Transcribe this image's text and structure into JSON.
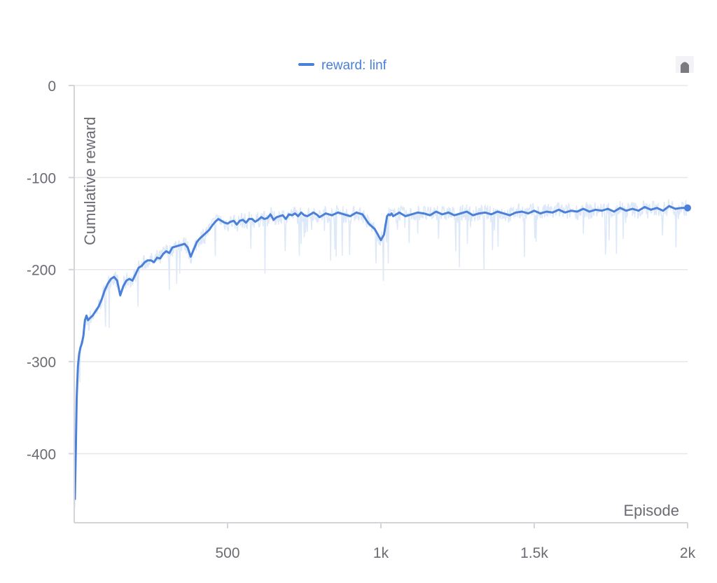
{
  "colors": {
    "series": "#4a80d8",
    "series_raw": "#dde8f8",
    "grid": "#e8e8ec",
    "axis": "#d4d4da",
    "text": "#6b6b73"
  },
  "legend": {
    "icon": "legend-line-icon",
    "label": "reward: linf",
    "placement": "top-center"
  },
  "toolbar": {
    "icon": "menu-handle-icon"
  },
  "chart_data": {
    "type": "line",
    "xlabel": "Episode",
    "ylabel": "Cumulative reward",
    "xlim": [
      0,
      2000
    ],
    "ylim": [
      -475,
      0
    ],
    "x_ticks": [
      {
        "value": 500,
        "label": "500"
      },
      {
        "value": 1000,
        "label": "1k"
      },
      {
        "value": 1500,
        "label": "1.5k"
      },
      {
        "value": 2000,
        "label": "2k"
      }
    ],
    "y_ticks": [
      {
        "value": 0,
        "label": "0"
      },
      {
        "value": -100,
        "label": "-100"
      },
      {
        "value": -200,
        "label": "-200"
      },
      {
        "value": -300,
        "label": "-300"
      },
      {
        "value": -400,
        "label": "-400"
      }
    ],
    "grid": true,
    "series": [
      {
        "name": "reward: linf",
        "x": [
          2,
          5,
          8,
          12,
          16,
          20,
          25,
          30,
          35,
          40,
          45,
          50,
          60,
          70,
          80,
          90,
          100,
          110,
          120,
          130,
          140,
          150,
          160,
          170,
          180,
          190,
          200,
          210,
          220,
          230,
          240,
          250,
          260,
          270,
          280,
          290,
          300,
          310,
          320,
          330,
          340,
          350,
          360,
          370,
          380,
          390,
          400,
          410,
          420,
          430,
          440,
          450,
          460,
          470,
          480,
          490,
          500,
          510,
          520,
          530,
          540,
          550,
          560,
          570,
          580,
          590,
          600,
          610,
          620,
          630,
          640,
          650,
          660,
          670,
          680,
          690,
          700,
          710,
          720,
          730,
          740,
          750,
          760,
          770,
          780,
          790,
          800,
          820,
          840,
          860,
          880,
          900,
          920,
          940,
          960,
          980,
          1000,
          1010,
          1020,
          1025,
          1030,
          1035,
          1040,
          1050,
          1060,
          1080,
          1100,
          1120,
          1140,
          1160,
          1180,
          1200,
          1220,
          1240,
          1260,
          1280,
          1300,
          1320,
          1340,
          1360,
          1380,
          1400,
          1420,
          1440,
          1460,
          1480,
          1500,
          1520,
          1540,
          1560,
          1580,
          1600,
          1620,
          1640,
          1660,
          1680,
          1700,
          1720,
          1740,
          1760,
          1780,
          1800,
          1820,
          1840,
          1860,
          1880,
          1900,
          1920,
          1940,
          1960,
          1980,
          2000
        ],
        "y": [
          -450,
          -400,
          -340,
          -305,
          -292,
          -285,
          -280,
          -272,
          -255,
          -250,
          -255,
          -253,
          -250,
          -245,
          -240,
          -232,
          -222,
          -215,
          -210,
          -208,
          -212,
          -228,
          -218,
          -212,
          -210,
          -212,
          -205,
          -198,
          -196,
          -192,
          -190,
          -190,
          -192,
          -187,
          -188,
          -183,
          -180,
          -182,
          -176,
          -175,
          -174,
          -173,
          -172,
          -176,
          -186,
          -178,
          -170,
          -166,
          -163,
          -160,
          -157,
          -152,
          -148,
          -145,
          -147,
          -149,
          -150,
          -148,
          -147,
          -151,
          -147,
          -146,
          -149,
          -145,
          -145,
          -148,
          -146,
          -143,
          -145,
          -144,
          -140,
          -146,
          -143,
          -142,
          -141,
          -145,
          -140,
          -141,
          -139,
          -142,
          -138,
          -141,
          -142,
          -140,
          -138,
          -140,
          -143,
          -139,
          -141,
          -138,
          -140,
          -142,
          -138,
          -140,
          -150,
          -156,
          -168,
          -162,
          -142,
          -140,
          -141,
          -139,
          -142,
          -140,
          -138,
          -142,
          -140,
          -138,
          -139,
          -141,
          -137,
          -140,
          -138,
          -141,
          -139,
          -137,
          -141,
          -139,
          -138,
          -140,
          -137,
          -139,
          -141,
          -138,
          -137,
          -139,
          -136,
          -139,
          -137,
          -138,
          -135,
          -138,
          -136,
          -137,
          -134,
          -137,
          -135,
          -136,
          -134,
          -137,
          -133,
          -136,
          -134,
          -136,
          -132,
          -135,
          -133,
          -136,
          -131,
          -134,
          -133,
          -133
        ]
      }
    ]
  }
}
